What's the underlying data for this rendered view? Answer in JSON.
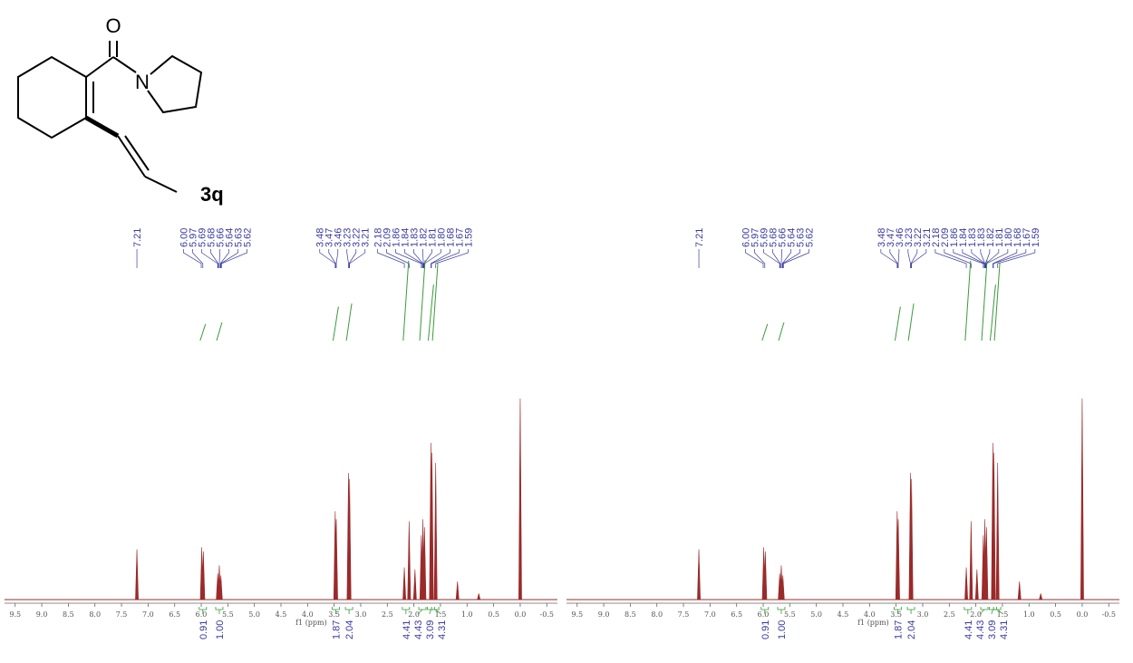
{
  "structure": {
    "label": "3q",
    "atoms": [
      "O",
      "N"
    ]
  },
  "chart_data": [
    {
      "type": "nmr",
      "xlabel": "f1 (ppm)",
      "xlim": [
        9.7,
        -0.7
      ],
      "ylim": [
        0,
        100
      ],
      "xticks": [
        9.5,
        {
          "value": 9,
          "label": "9.0"
        },
        8.5,
        {
          "value": 8,
          "label": "8.0"
        },
        7.5,
        {
          "value": 7,
          "label": "7.0"
        },
        6.5,
        {
          "value": 6,
          "label": "6.0"
        },
        5.5,
        {
          "value": 5,
          "label": "5.0"
        },
        4.5,
        {
          "value": 4,
          "label": "4.0"
        },
        3.5,
        {
          "value": 3,
          "label": "3.0"
        },
        2.5,
        {
          "value": 2,
          "label": "2.0"
        },
        1.5,
        {
          "value": 1,
          "label": "1.0"
        },
        0.5,
        {
          "value": 0,
          "label": "0.0"
        },
        -0.5
      ],
      "color": "#9b2a2a",
      "peaks": {
        "x": [
          7.21,
          5.99,
          5.96,
          5.69,
          5.66,
          5.63,
          3.48,
          3.46,
          3.23,
          3.21,
          2.18,
          2.09,
          1.98,
          1.86,
          1.83,
          1.8,
          1.68,
          1.66,
          1.59,
          1.18,
          0.78,
          0
        ],
        "values": [
          25,
          26,
          24,
          13,
          17,
          12,
          44,
          40,
          63,
          60,
          16,
          39,
          15,
          32,
          40,
          36,
          78,
          73,
          68,
          9,
          3,
          100
        ]
      },
      "shift_labels": {
        "x": [
          7.21,
          6,
          5.97,
          5.69,
          5.68,
          5.66,
          5.64,
          5.63,
          5.62,
          3.48,
          3.47,
          3.46,
          3.23,
          3.22,
          3.21,
          2.18,
          2.09,
          1.86,
          1.84,
          1.83,
          1.82,
          1.81,
          1.8,
          1.68,
          1.67,
          1.59
        ],
        "value_labels": [
          "7.21",
          "6.00",
          "5.97",
          "5.69",
          "5.68",
          "5.66",
          "5.64",
          "5.63",
          "5.62",
          "3.48",
          "3.47",
          "3.46",
          "3.23",
          "3.22",
          "3.21",
          "2.18",
          "2.09",
          "1.86",
          "1.84",
          "1.83",
          "1.82",
          "1.81",
          "1.80",
          "1.68",
          "1.67",
          "1.59"
        ]
      },
      "integrals": {
        "x": [
          5.97,
          5.66,
          3.47,
          3.22,
          2.15,
          1.84,
          1.68,
          1.6
        ],
        "values": [
          0.91,
          1,
          1.87,
          2.04,
          4.41,
          4.43,
          3.09,
          4.31
        ],
        "value_labels": [
          "0.91",
          "1.00",
          "1.87",
          "2.04",
          "4.41",
          "4.43",
          "3.09",
          "4.31"
        ],
        "color": "#3a9a3a"
      }
    },
    {
      "type": "nmr",
      "xlabel": "f1 (ppm)",
      "xlim": [
        9.7,
        -0.7
      ],
      "ylim": [
        0,
        100
      ],
      "xticks": [
        9.5,
        {
          "value": 9,
          "label": "9.0"
        },
        8.5,
        {
          "value": 8,
          "label": "8.0"
        },
        7.5,
        {
          "value": 7,
          "label": "7.0"
        },
        6.5,
        {
          "value": 6,
          "label": "6.0"
        },
        5.5,
        {
          "value": 5,
          "label": "5.0"
        },
        4.5,
        {
          "value": 4,
          "label": "4.0"
        },
        3.5,
        {
          "value": 3,
          "label": "3.0"
        },
        2.5,
        {
          "value": 2,
          "label": "2.0"
        },
        1.5,
        {
          "value": 1,
          "label": "1.0"
        },
        0.5,
        {
          "value": 0,
          "label": "0.0"
        },
        -0.5
      ],
      "color": "#9b2a2a",
      "peaks": {
        "x": [
          7.21,
          5.99,
          5.96,
          5.69,
          5.66,
          5.63,
          3.48,
          3.46,
          3.23,
          3.21,
          2.18,
          2.09,
          1.98,
          1.86,
          1.83,
          1.8,
          1.68,
          1.66,
          1.59,
          1.18,
          0.78,
          0
        ],
        "values": [
          25,
          26,
          24,
          13,
          17,
          12,
          44,
          40,
          63,
          60,
          16,
          39,
          15,
          32,
          40,
          36,
          78,
          73,
          68,
          9,
          3,
          100
        ]
      },
      "shift_labels": {
        "x": [
          7.21,
          6,
          5.97,
          5.69,
          5.68,
          5.66,
          5.64,
          5.63,
          5.62,
          3.48,
          3.47,
          3.46,
          3.23,
          3.22,
          3.21,
          2.18,
          2.09,
          1.86,
          1.84,
          1.83,
          1.83,
          1.82,
          1.81,
          1.8,
          1.68,
          1.67,
          1.59
        ],
        "value_labels": [
          "7.21",
          "6.00",
          "5.97",
          "5.69",
          "5.68",
          "5.66",
          "5.64",
          "5.63",
          "5.62",
          "3.48",
          "3.47",
          "3.46",
          "3.23",
          "3.22",
          "3.21",
          "2.18",
          "2.09",
          "1.86",
          "1.84",
          "1.83",
          "1.83",
          "1.82",
          "1.81",
          "1.80",
          "1.68",
          "1.67",
          "1.59"
        ]
      },
      "integrals": {
        "x": [
          5.97,
          5.66,
          3.47,
          3.22,
          2.15,
          1.84,
          1.68,
          1.6
        ],
        "values": [
          0.91,
          1,
          1.87,
          2.04,
          4.41,
          4.43,
          3.09,
          4.31
        ],
        "value_labels": [
          "0.91",
          "1.00",
          "1.87",
          "2.04",
          "4.41",
          "4.43",
          "3.09",
          "4.31"
        ],
        "color": "#3a9a3a"
      }
    }
  ]
}
